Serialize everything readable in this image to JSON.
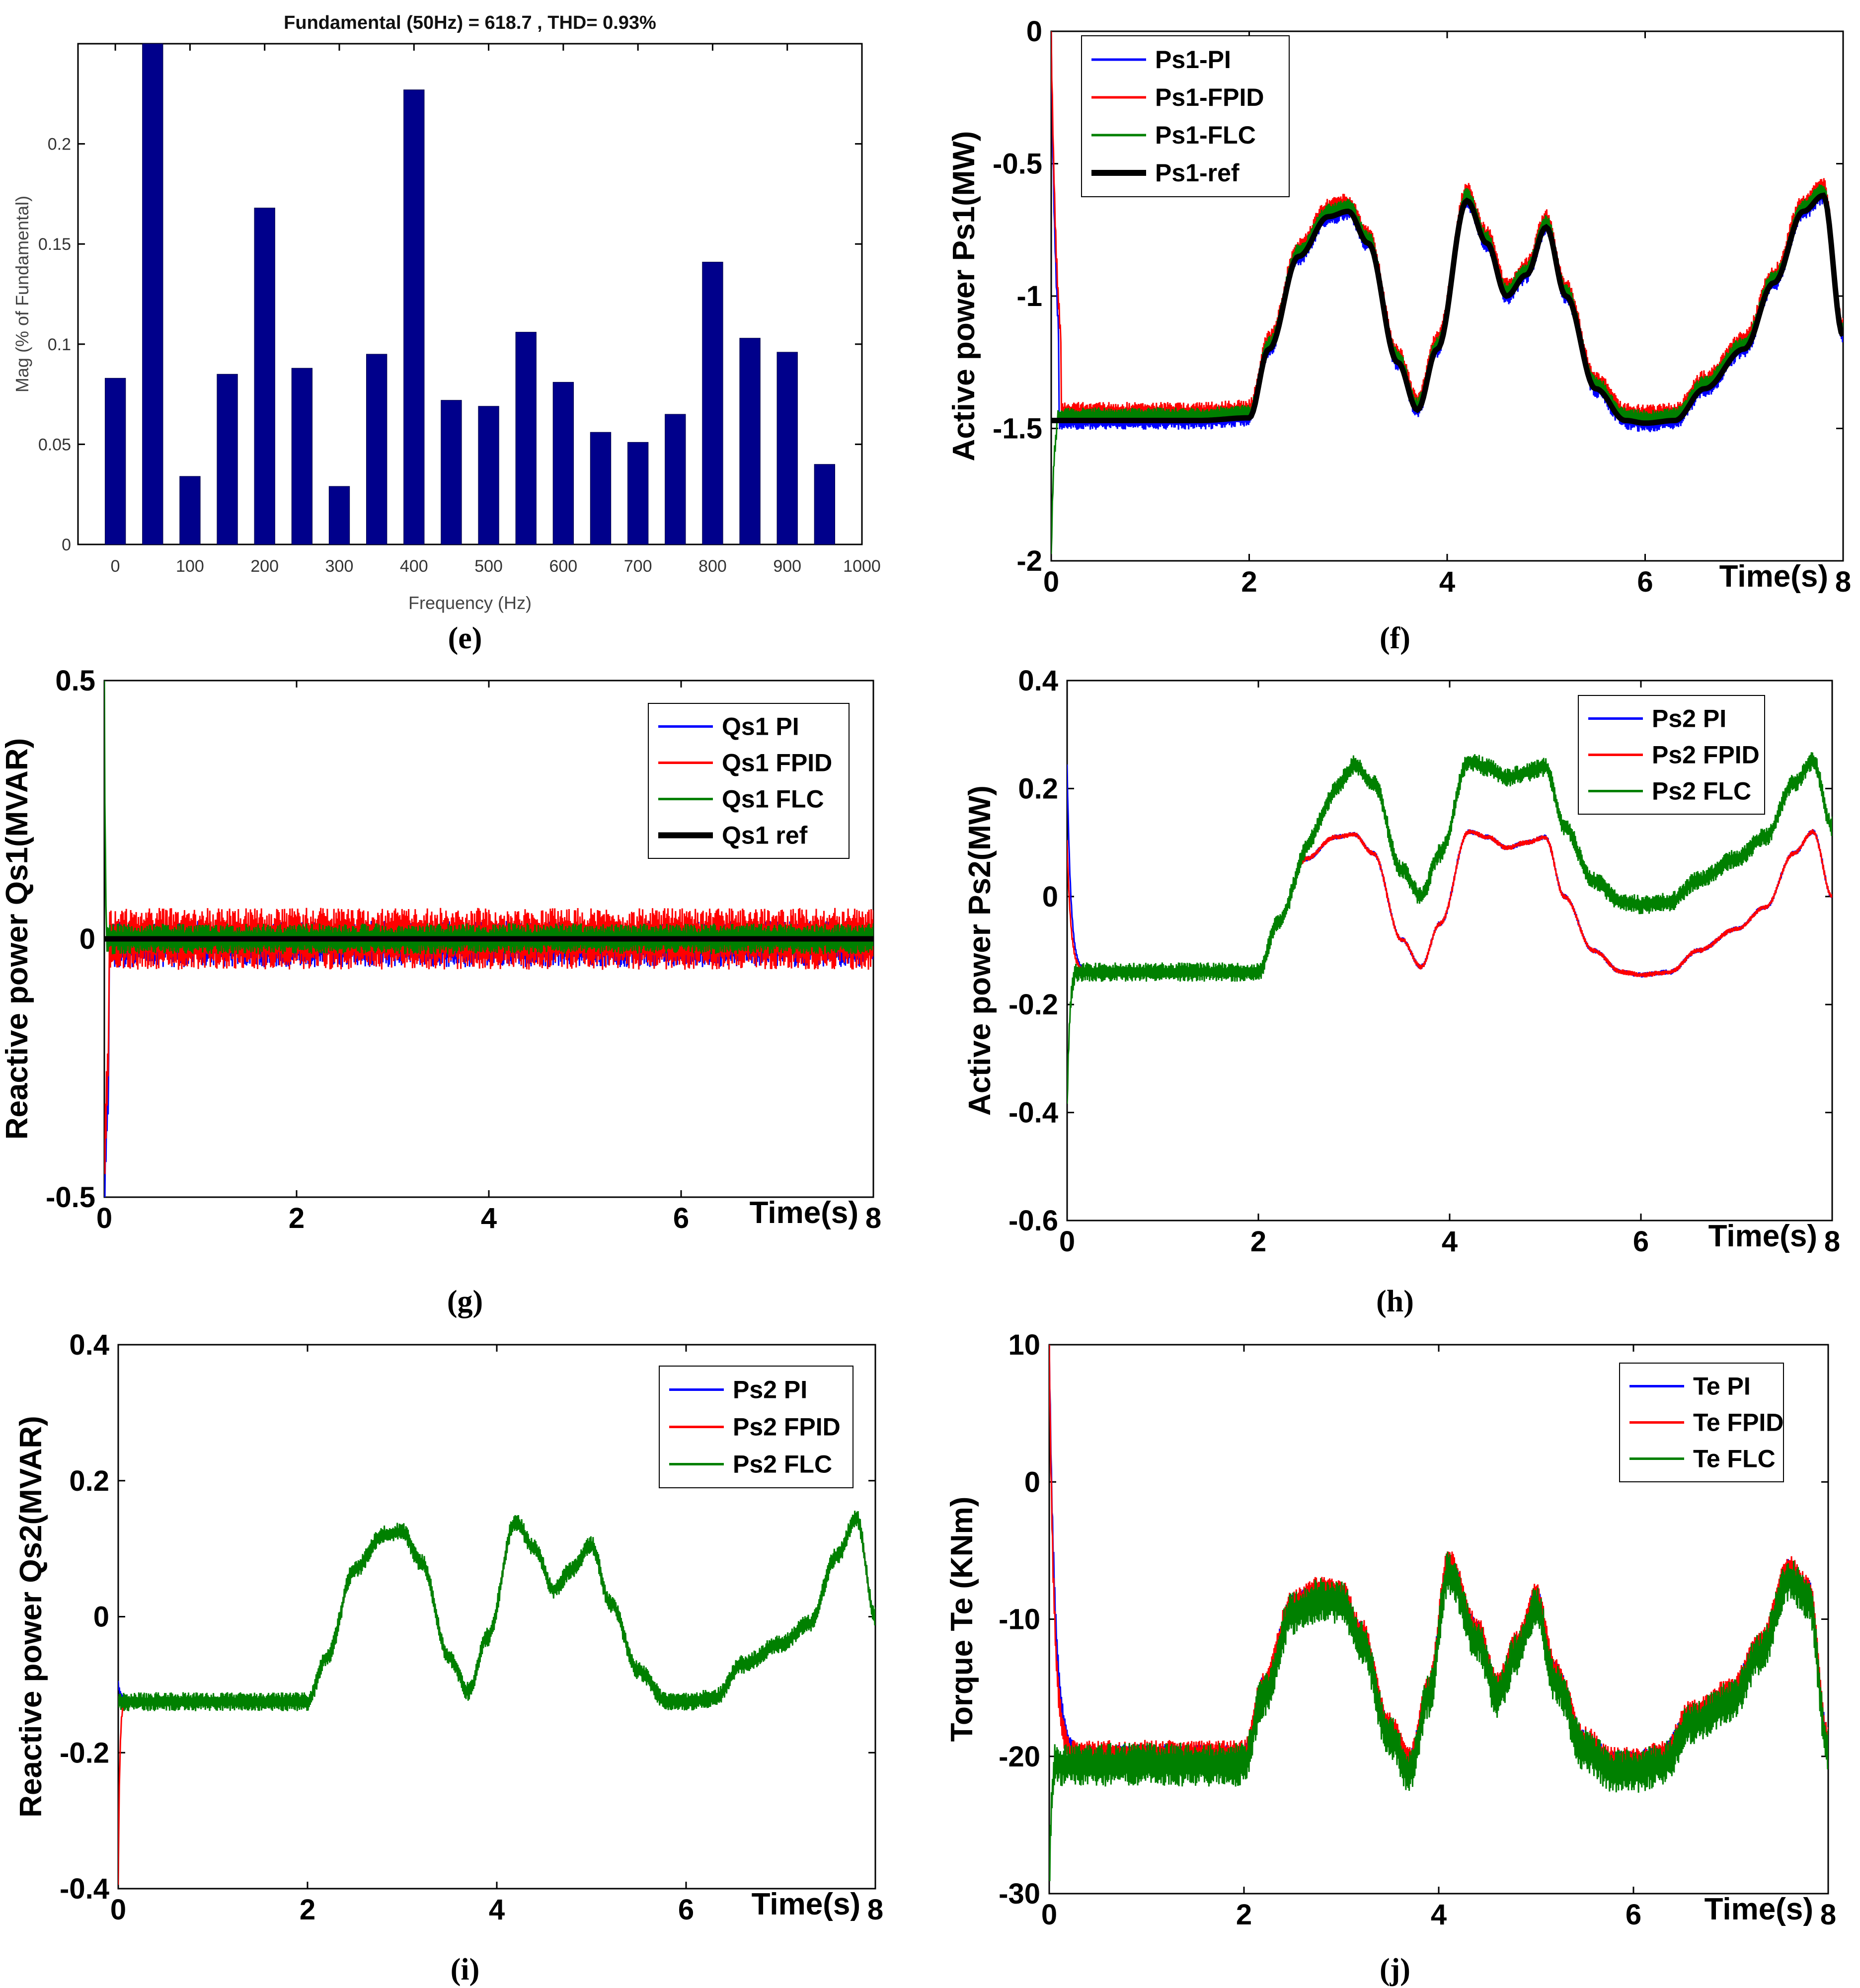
{
  "colors": {
    "pi": "#0000ff",
    "fpid": "#ff0000",
    "flc": "#008000",
    "ref": "#000000",
    "bar": "#00008b"
  },
  "chart_data": [
    {
      "id": "e",
      "type": "bar",
      "caption": "(e)",
      "title": "Fundamental (50Hz) = 618.7 , THD= 0.93%",
      "xlabel": "Frequency (Hz)",
      "ylabel": "Mag (% of Fundamental)",
      "xlim": [
        -50,
        1000
      ],
      "ylim": [
        0,
        0.25
      ],
      "xticks": [
        0,
        100,
        200,
        300,
        400,
        500,
        600,
        700,
        800,
        900,
        1000
      ],
      "yticks": [
        0,
        0.05,
        0.1,
        0.15,
        0.2
      ],
      "xtick_labels": [
        "0",
        "100",
        "200",
        "300",
        "400",
        "500",
        "600",
        "700",
        "800",
        "900",
        "1000"
      ],
      "ytick_labels": [
        "0",
        "0.05",
        "0.1",
        "0.15",
        "0.2"
      ],
      "categories": [
        0,
        50,
        100,
        150,
        200,
        250,
        300,
        350,
        400,
        450,
        500,
        550,
        600,
        650,
        700,
        750,
        800,
        850,
        900,
        950
      ],
      "values": [
        0.083,
        0.25,
        0.034,
        0.085,
        0.168,
        0.088,
        0.029,
        0.095,
        0.227,
        0.072,
        0.069,
        0.106,
        0.081,
        0.056,
        0.051,
        0.065,
        0.141,
        0.103,
        0.096,
        0.04
      ]
    },
    {
      "id": "f",
      "type": "line",
      "caption": "(f)",
      "xlabel": "Time(s)",
      "ylabel": "Active power Ps1(MW)",
      "xlim": [
        0,
        8
      ],
      "ylim": [
        -2,
        0
      ],
      "xticks": [
        0,
        2,
        4,
        6,
        8
      ],
      "yticks": [
        -2,
        -1.5,
        -1,
        -0.5,
        0
      ],
      "xtick_labels": [
        "0",
        "2",
        "4",
        "6",
        "8"
      ],
      "ytick_labels": [
        "-2",
        "-1.5",
        "-1",
        "-0.5",
        "0"
      ],
      "legend": [
        "Ps1-PI",
        "Ps1-FPID",
        "Ps1-FLC",
        "Ps1-ref"
      ],
      "reference": {
        "x": [
          0,
          0.5,
          1,
          1.5,
          2,
          2.2,
          2.5,
          2.8,
          3,
          3.2,
          3.5,
          3.7,
          3.9,
          4.2,
          4.4,
          4.6,
          4.8,
          5,
          5.2,
          5.5,
          5.8,
          6,
          6.3,
          6.6,
          7,
          7.3,
          7.6,
          7.8,
          8
        ],
        "y": [
          -1.47,
          -1.47,
          -1.47,
          -1.47,
          -1.46,
          -1.2,
          -0.85,
          -0.7,
          -0.68,
          -0.8,
          -1.25,
          -1.43,
          -1.2,
          -0.64,
          -0.8,
          -1.0,
          -0.92,
          -0.74,
          -1.0,
          -1.35,
          -1.47,
          -1.48,
          -1.47,
          -1.35,
          -1.2,
          -0.95,
          -0.68,
          -0.62,
          -1.15
        ]
      },
      "series": [
        {
          "name": "Ps1-PI",
          "color_key": "pi",
          "start": [
            0,
            -0.02
          ],
          "settle": 0.08,
          "decay": 0.1,
          "noise": 0.035,
          "offset": 0.0
        },
        {
          "name": "Ps1-FPID",
          "color_key": "fpid",
          "start": [
            0,
            -0.02
          ],
          "settle": 0.1,
          "decay": 0.12,
          "noise": 0.04,
          "offset": 0.03
        },
        {
          "name": "Ps1-FLC",
          "color_key": "flc",
          "start": [
            0,
            -2.0
          ],
          "settle": 0.06,
          "decay": 0.05,
          "noise": 0.03,
          "offset": 0.02
        }
      ]
    },
    {
      "id": "g",
      "type": "line",
      "caption": "(g)",
      "xlabel": "Time(s)",
      "ylabel": "Reactive power Qs1(MVAR)",
      "xlim": [
        0,
        8
      ],
      "ylim": [
        -0.5,
        0.5
      ],
      "xticks": [
        0,
        2,
        4,
        6,
        8
      ],
      "yticks": [
        -0.5,
        0,
        0.5
      ],
      "xtick_labels": [
        "0",
        "2",
        "4",
        "6",
        "8"
      ],
      "ytick_labels": [
        "-0.5",
        "0",
        "0.5"
      ],
      "legend": [
        "Qs1 PI",
        "Qs1 FPID",
        "Qs1 FLC",
        "Qs1 ref"
      ],
      "reference": {
        "x": [
          0,
          8
        ],
        "y": [
          0,
          0
        ]
      },
      "series": [
        {
          "name": "Qs1 PI",
          "color_key": "pi",
          "start": [
            0.05,
            -0.5
          ],
          "settle": 0.05,
          "decay": 0.15,
          "noise": 0.045,
          "offset": -0.01
        },
        {
          "name": "Qs1 FPID",
          "color_key": "fpid",
          "start": [
            0.05,
            -0.45
          ],
          "settle": 0.05,
          "decay": 0.12,
          "noise": 0.06,
          "offset": 0.0
        },
        {
          "name": "Qs1 FLC",
          "color_key": "flc",
          "start": [
            0,
            0.5
          ],
          "settle": 0.02,
          "decay": 0.02,
          "noise": 0.03,
          "offset": 0.0
        }
      ]
    },
    {
      "id": "h",
      "type": "line",
      "caption": "(h)",
      "xlabel": "Time(s)",
      "ylabel": "Active power Ps2(MW)",
      "xlim": [
        0,
        8
      ],
      "ylim": [
        -0.6,
        0.4
      ],
      "xticks": [
        0,
        2,
        4,
        6,
        8
      ],
      "yticks": [
        -0.6,
        -0.4,
        -0.2,
        0,
        0.2,
        0.4
      ],
      "xtick_labels": [
        "0",
        "2",
        "4",
        "6",
        "8"
      ],
      "ytick_labels": [
        "-0.6",
        "-0.4",
        "-0.2",
        "0",
        "0.2",
        "0.4"
      ],
      "legend": [
        "Ps2 PI",
        "Ps2 FPID",
        "Ps2 FLC"
      ],
      "reference": {
        "x": [
          0,
          0.5,
          1,
          1.5,
          2,
          2.2,
          2.5,
          2.8,
          3,
          3.2,
          3.5,
          3.7,
          3.9,
          4.2,
          4.4,
          4.6,
          4.8,
          5,
          5.2,
          5.5,
          5.8,
          6,
          6.3,
          6.6,
          7,
          7.3,
          7.6,
          7.8,
          8
        ],
        "y": [
          -0.14,
          -0.14,
          -0.14,
          -0.14,
          -0.14,
          -0.05,
          0.07,
          0.11,
          0.115,
          0.08,
          -0.08,
          -0.13,
          -0.05,
          0.12,
          0.11,
          0.09,
          0.1,
          0.11,
          0.0,
          -0.1,
          -0.14,
          -0.145,
          -0.14,
          -0.1,
          -0.06,
          -0.02,
          0.08,
          0.12,
          0.0
        ]
      },
      "series": [
        {
          "name": "Ps2 PI",
          "color_key": "pi",
          "start": [
            0,
            0.24
          ],
          "settle": 0.15,
          "decay": 0.08,
          "noise": 0.005,
          "offset": 0.0
        },
        {
          "name": "Ps2 FPID",
          "color_key": "fpid",
          "start": [
            0,
            0.1
          ],
          "settle": 0.15,
          "decay": 0.08,
          "noise": 0.005,
          "offset": 0.0
        },
        {
          "name": "Ps2 FLC",
          "color_key": "flc",
          "start": [
            0,
            -0.4
          ],
          "settle": 0.08,
          "decay": 0.05,
          "noise": 0.018,
          "offset": 0.0,
          "shift_after": 3.0,
          "shift": 0.13
        }
      ]
    },
    {
      "id": "i",
      "type": "line",
      "caption": "(i)",
      "xlabel": "Time(s)",
      "ylabel": "Reactive power Qs2(MVAR)",
      "xlim": [
        0,
        8
      ],
      "ylim": [
        -0.4,
        0.4
      ],
      "xticks": [
        0,
        2,
        4,
        6,
        8
      ],
      "yticks": [
        -0.4,
        -0.2,
        0,
        0.2,
        0.4
      ],
      "xtick_labels": [
        "0",
        "2",
        "4",
        "6",
        "8"
      ],
      "ytick_labels": [
        "-0.4",
        "-0.2",
        "0",
        "0.2",
        "0.4"
      ],
      "legend": [
        "Ps2 PI",
        "Ps2 FPID",
        "Ps2 FLC"
      ],
      "reference": {
        "x": [
          0,
          0.5,
          1,
          1.5,
          2,
          2.2,
          2.5,
          2.8,
          3,
          3.2,
          3.5,
          3.7,
          3.9,
          4.2,
          4.4,
          4.6,
          4.8,
          5,
          5.2,
          5.5,
          5.8,
          6,
          6.3,
          6.6,
          7,
          7.3,
          7.6,
          7.8,
          8
        ],
        "y": [
          -0.125,
          -0.125,
          -0.125,
          -0.125,
          -0.125,
          -0.06,
          0.07,
          0.12,
          0.125,
          0.08,
          -0.06,
          -0.11,
          -0.03,
          0.14,
          0.1,
          0.04,
          0.07,
          0.105,
          0.02,
          -0.08,
          -0.125,
          -0.125,
          -0.12,
          -0.07,
          -0.04,
          -0.01,
          0.09,
          0.145,
          0.0
        ]
      },
      "series": [
        {
          "name": "Ps2 PI",
          "color_key": "pi",
          "start": [
            0,
            -0.1
          ],
          "settle": 0.1,
          "decay": 0.06,
          "noise": 0.006,
          "offset": 0.0
        },
        {
          "name": "Ps2 FPID",
          "color_key": "fpid",
          "start": [
            0,
            -0.4
          ],
          "settle": 0.06,
          "decay": 0.03,
          "noise": 0.006,
          "offset": 0.0
        },
        {
          "name": "Ps2 FLC",
          "color_key": "flc",
          "start": [
            0,
            -0.13
          ],
          "settle": 0.02,
          "decay": 0.02,
          "noise": 0.014,
          "offset": 0.0
        }
      ]
    },
    {
      "id": "j",
      "type": "line",
      "caption": "(j)",
      "xlabel": "Time(s)",
      "ylabel": "Torque Te (KNm)",
      "xlim": [
        0,
        8
      ],
      "ylim": [
        -30,
        10
      ],
      "xticks": [
        0,
        2,
        4,
        6,
        8
      ],
      "yticks": [
        -30,
        -20,
        -10,
        0,
        10
      ],
      "xtick_labels": [
        "0",
        "2",
        "4",
        "6",
        "8"
      ],
      "ytick_labels": [
        "-30",
        "-20",
        "-10",
        "0",
        "10"
      ],
      "legend": [
        "Te PI",
        "Te FPID",
        "Te FLC"
      ],
      "reference": {
        "x": [
          0,
          0.5,
          1,
          1.5,
          2,
          2.2,
          2.5,
          2.8,
          3,
          3.2,
          3.5,
          3.7,
          3.9,
          4.1,
          4.4,
          4.6,
          4.8,
          5,
          5.2,
          5.5,
          5.8,
          6,
          6.3,
          6.6,
          7,
          7.3,
          7.6,
          7.8,
          8
        ],
        "y": [
          -20,
          -20,
          -20,
          -20,
          -20,
          -15,
          -9,
          -8,
          -8.2,
          -11,
          -18,
          -20.5,
          -15,
          -6,
          -11,
          -15,
          -12,
          -8.5,
          -14,
          -19,
          -20.5,
          -20.5,
          -20,
          -17,
          -15.5,
          -12,
          -6.5,
          -8,
          -19
        ]
      },
      "series": [
        {
          "name": "Te PI",
          "color_key": "pi",
          "start": [
            0,
            10
          ],
          "settle": 0.25,
          "decay": 0.12,
          "noise": 0.9,
          "offset": 0.0
        },
        {
          "name": "Te FPID",
          "color_key": "fpid",
          "start": [
            0,
            10
          ],
          "settle": 0.2,
          "decay": 0.1,
          "noise": 1.0,
          "offset": 0.2
        },
        {
          "name": "Te FLC",
          "color_key": "flc",
          "start": [
            0,
            -30
          ],
          "settle": 0.05,
          "decay": 0.04,
          "noise": 1.6,
          "offset": -0.6
        }
      ]
    }
  ]
}
